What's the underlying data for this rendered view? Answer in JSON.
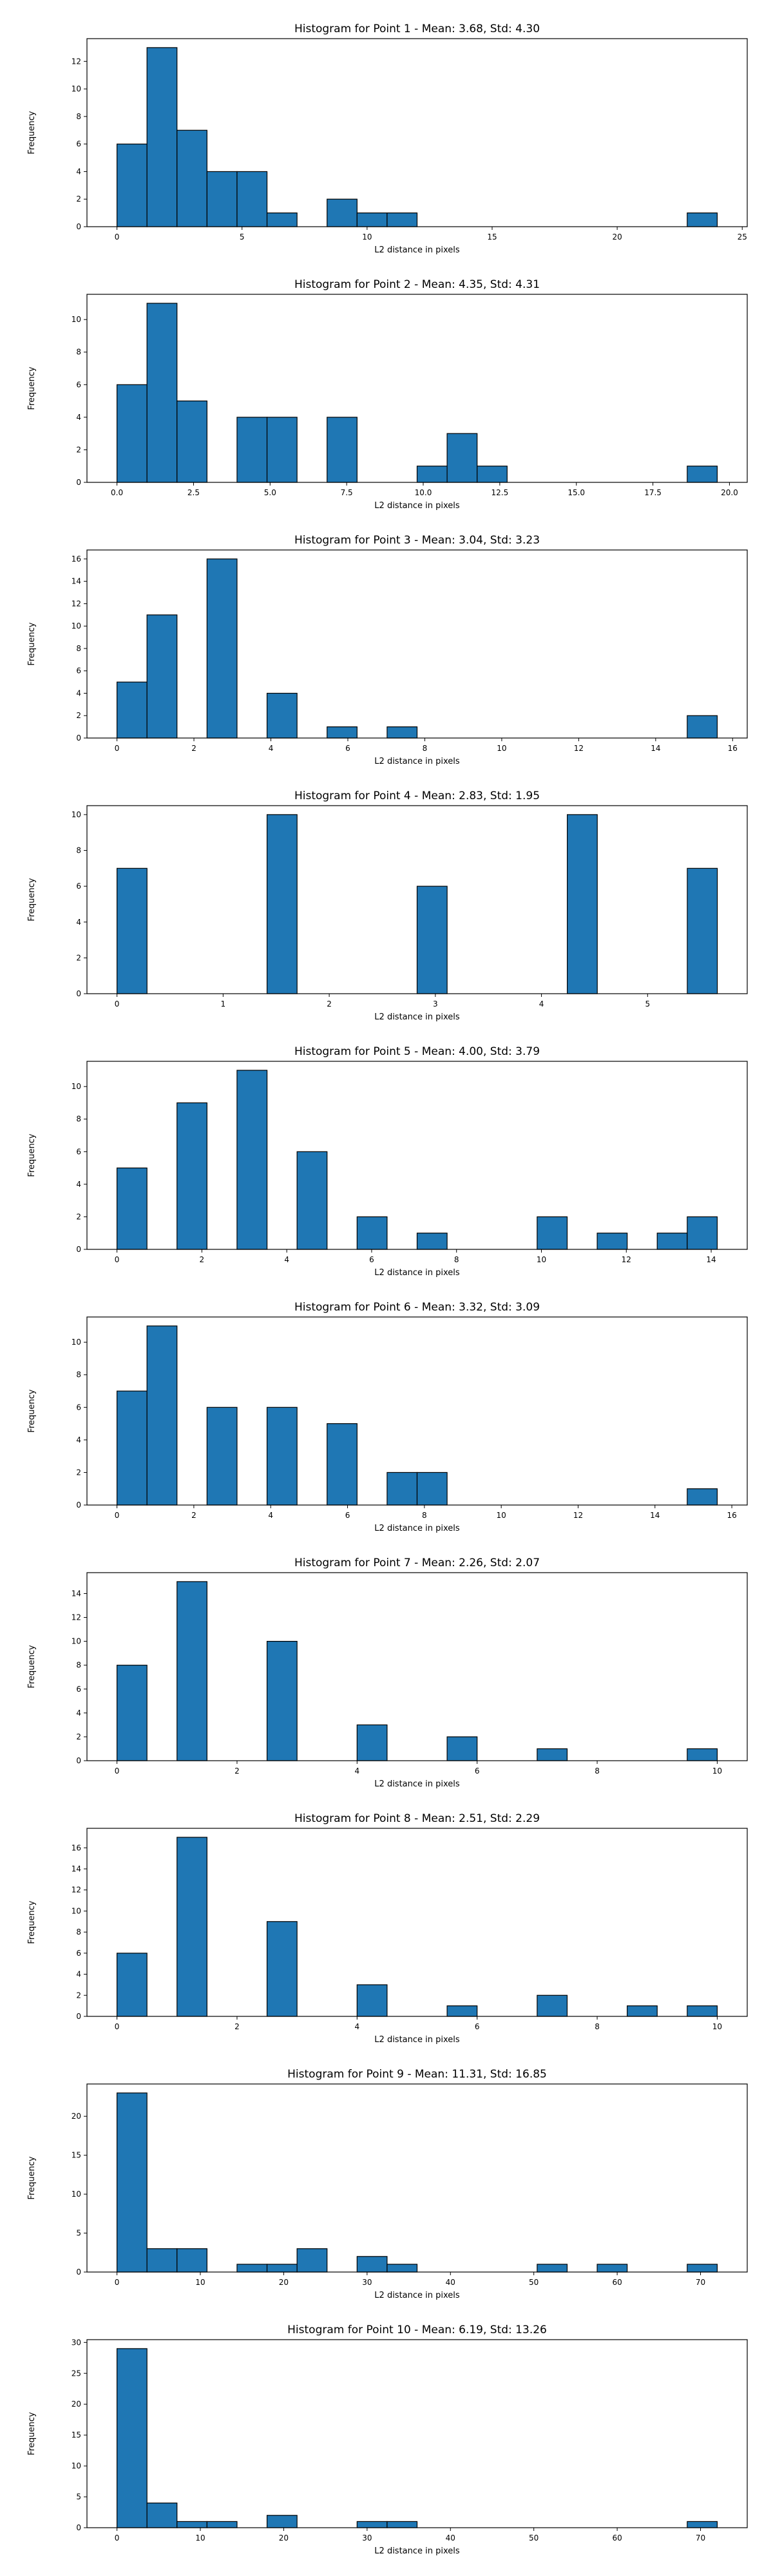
{
  "chart_data": [
    {
      "type": "bar",
      "title": "Histogram for Point 1 - Mean: 3.68, Std: 4.30",
      "xlabel": "L2 distance in pixels",
      "ylabel": "Frequency",
      "xlim": [
        -1.2,
        25.2
      ],
      "ylim": [
        0,
        13.65
      ],
      "xticks": [
        0,
        5,
        10,
        15,
        20,
        25
      ],
      "yticks": [
        0,
        2,
        4,
        6,
        8,
        10,
        12
      ],
      "bins": [
        {
          "x0": 0.0,
          "x1": 1.2,
          "count": 6
        },
        {
          "x0": 1.2,
          "x1": 2.4,
          "count": 13
        },
        {
          "x0": 2.4,
          "x1": 3.6,
          "count": 7
        },
        {
          "x0": 3.6,
          "x1": 4.8,
          "count": 4
        },
        {
          "x0": 4.8,
          "x1": 6.0,
          "count": 4
        },
        {
          "x0": 6.0,
          "x1": 7.2,
          "count": 1
        },
        {
          "x0": 8.4,
          "x1": 9.6,
          "count": 2
        },
        {
          "x0": 9.6,
          "x1": 10.8,
          "count": 1
        },
        {
          "x0": 10.8,
          "x1": 12.0,
          "count": 1
        },
        {
          "x0": 22.8,
          "x1": 24.0,
          "count": 1
        }
      ]
    },
    {
      "type": "bar",
      "title": "Histogram for Point 2 - Mean: 4.35, Std: 4.31",
      "xlabel": "L2 distance in pixels",
      "ylabel": "Frequency",
      "xlim": [
        -0.98,
        20.58
      ],
      "ylim": [
        0,
        11.55
      ],
      "xticks": [
        0.0,
        2.5,
        5.0,
        7.5,
        10.0,
        12.5,
        15.0,
        17.5,
        20.0
      ],
      "tick_labels": [
        "0.0",
        "2.5",
        "5.0",
        "7.5",
        "10.0",
        "12.5",
        "15.0",
        "17.5",
        "20.0"
      ],
      "yticks": [
        0,
        2,
        4,
        6,
        8,
        10
      ],
      "bins": [
        {
          "x0": 0.0,
          "x1": 0.98,
          "count": 6
        },
        {
          "x0": 0.98,
          "x1": 1.96,
          "count": 11
        },
        {
          "x0": 1.96,
          "x1": 2.94,
          "count": 5
        },
        {
          "x0": 3.92,
          "x1": 4.9,
          "count": 4
        },
        {
          "x0": 4.9,
          "x1": 5.88,
          "count": 4
        },
        {
          "x0": 6.86,
          "x1": 7.84,
          "count": 4
        },
        {
          "x0": 9.8,
          "x1": 10.78,
          "count": 1
        },
        {
          "x0": 10.78,
          "x1": 11.76,
          "count": 3
        },
        {
          "x0": 11.76,
          "x1": 12.74,
          "count": 1
        },
        {
          "x0": 18.62,
          "x1": 19.6,
          "count": 1
        }
      ]
    },
    {
      "type": "bar",
      "title": "Histogram for Point 3 - Mean: 3.04, Std: 3.23",
      "xlabel": "L2 distance in pixels",
      "ylabel": "Frequency",
      "xlim": [
        -0.78,
        16.38
      ],
      "ylim": [
        0,
        16.8
      ],
      "xticks": [
        0,
        2,
        4,
        6,
        8,
        10,
        12,
        14,
        16
      ],
      "yticks": [
        0,
        2,
        4,
        6,
        8,
        10,
        12,
        14,
        16
      ],
      "bins": [
        {
          "x0": 0.0,
          "x1": 0.78,
          "count": 5
        },
        {
          "x0": 0.78,
          "x1": 1.56,
          "count": 11
        },
        {
          "x0": 2.34,
          "x1": 3.12,
          "count": 16
        },
        {
          "x0": 3.9,
          "x1": 4.68,
          "count": 4
        },
        {
          "x0": 5.46,
          "x1": 6.24,
          "count": 1
        },
        {
          "x0": 7.02,
          "x1": 7.8,
          "count": 1
        },
        {
          "x0": 14.82,
          "x1": 15.6,
          "count": 2
        }
      ]
    },
    {
      "type": "bar",
      "title": "Histogram for Point 4 - Mean: 2.83, Std: 1.95",
      "xlabel": "L2 distance in pixels",
      "ylabel": "Frequency",
      "xlim": [
        -0.283,
        5.939
      ],
      "ylim": [
        0,
        10.5
      ],
      "xticks": [
        0,
        1,
        2,
        3,
        4,
        5
      ],
      "yticks": [
        0,
        2,
        4,
        6,
        8,
        10
      ],
      "bins": [
        {
          "x0": 0.0,
          "x1": 0.283,
          "count": 7
        },
        {
          "x0": 1.414,
          "x1": 1.697,
          "count": 10
        },
        {
          "x0": 2.828,
          "x1": 3.111,
          "count": 6
        },
        {
          "x0": 4.243,
          "x1": 4.526,
          "count": 10
        },
        {
          "x0": 5.374,
          "x1": 5.657,
          "count": 7
        }
      ]
    },
    {
      "type": "bar",
      "title": "Histogram for Point 5 - Mean: 4.00, Std: 3.79",
      "xlabel": "L2 distance in pixels",
      "ylabel": "Frequency",
      "xlim": [
        -0.707,
        14.849
      ],
      "ylim": [
        0,
        11.55
      ],
      "xticks": [
        0,
        2,
        4,
        6,
        8,
        10,
        12,
        14
      ],
      "yticks": [
        0,
        2,
        4,
        6,
        8,
        10
      ],
      "bins": [
        {
          "x0": 0.0,
          "x1": 0.707,
          "count": 5
        },
        {
          "x0": 1.414,
          "x1": 2.121,
          "count": 9
        },
        {
          "x0": 2.828,
          "x1": 3.536,
          "count": 11
        },
        {
          "x0": 4.243,
          "x1": 4.95,
          "count": 6
        },
        {
          "x0": 5.657,
          "x1": 6.364,
          "count": 2
        },
        {
          "x0": 7.071,
          "x1": 7.778,
          "count": 1
        },
        {
          "x0": 9.899,
          "x1": 10.607,
          "count": 2
        },
        {
          "x0": 11.314,
          "x1": 12.021,
          "count": 1
        },
        {
          "x0": 12.728,
          "x1": 13.435,
          "count": 1
        },
        {
          "x0": 13.435,
          "x1": 14.142,
          "count": 2
        }
      ]
    },
    {
      "type": "bar",
      "title": "Histogram for Point 6 - Mean: 3.32, Std: 3.09",
      "xlabel": "L2 distance in pixels",
      "ylabel": "Frequency",
      "xlim": [
        -0.781,
        16.401
      ],
      "ylim": [
        0,
        11.55
      ],
      "xticks": [
        0,
        2,
        4,
        6,
        8,
        10,
        12,
        14,
        16
      ],
      "yticks": [
        0,
        2,
        4,
        6,
        8,
        10
      ],
      "bins": [
        {
          "x0": 0.0,
          "x1": 0.781,
          "count": 7
        },
        {
          "x0": 0.781,
          "x1": 1.562,
          "count": 11
        },
        {
          "x0": 2.343,
          "x1": 3.124,
          "count": 6
        },
        {
          "x0": 3.905,
          "x1": 4.686,
          "count": 6
        },
        {
          "x0": 5.467,
          "x1": 6.248,
          "count": 5
        },
        {
          "x0": 7.029,
          "x1": 7.81,
          "count": 2
        },
        {
          "x0": 7.81,
          "x1": 8.591,
          "count": 2
        },
        {
          "x0": 14.839,
          "x1": 15.62,
          "count": 1
        }
      ]
    },
    {
      "type": "bar",
      "title": "Histogram for Point 7 - Mean: 2.26, Std: 2.07",
      "xlabel": "L2 distance in pixels",
      "ylabel": "Frequency",
      "xlim": [
        -0.5,
        10.5
      ],
      "ylim": [
        0,
        15.75
      ],
      "xticks": [
        0,
        2,
        4,
        6,
        8,
        10
      ],
      "yticks": [
        0,
        2,
        4,
        6,
        8,
        10,
        12,
        14
      ],
      "bins": [
        {
          "x0": 0.0,
          "x1": 0.5,
          "count": 8
        },
        {
          "x0": 1.0,
          "x1": 1.5,
          "count": 15
        },
        {
          "x0": 2.5,
          "x1": 3.0,
          "count": 10
        },
        {
          "x0": 4.0,
          "x1": 4.5,
          "count": 3
        },
        {
          "x0": 5.5,
          "x1": 6.0,
          "count": 2
        },
        {
          "x0": 7.0,
          "x1": 7.5,
          "count": 1
        },
        {
          "x0": 9.5,
          "x1": 10.0,
          "count": 1
        }
      ]
    },
    {
      "type": "bar",
      "title": "Histogram for Point 8 - Mean: 2.51, Std: 2.29",
      "xlabel": "L2 distance in pixels",
      "ylabel": "Frequency",
      "xlim": [
        -0.5,
        10.5
      ],
      "ylim": [
        0,
        17.85
      ],
      "xticks": [
        0,
        2,
        4,
        6,
        8,
        10
      ],
      "yticks": [
        0,
        2,
        4,
        6,
        8,
        10,
        12,
        14,
        16
      ],
      "bins": [
        {
          "x0": 0.0,
          "x1": 0.5,
          "count": 6
        },
        {
          "x0": 1.0,
          "x1": 1.5,
          "count": 17
        },
        {
          "x0": 2.5,
          "x1": 3.0,
          "count": 9
        },
        {
          "x0": 4.0,
          "x1": 4.5,
          "count": 3
        },
        {
          "x0": 5.5,
          "x1": 6.0,
          "count": 1
        },
        {
          "x0": 7.0,
          "x1": 7.5,
          "count": 2
        },
        {
          "x0": 8.5,
          "x1": 9.0,
          "count": 1
        },
        {
          "x0": 9.5,
          "x1": 10.0,
          "count": 1
        }
      ]
    },
    {
      "type": "bar",
      "title": "Histogram for Point 9 - Mean: 11.31, Std: 16.85",
      "xlabel": "L2 distance in pixels",
      "ylabel": "Frequency",
      "xlim": [
        -3.6,
        75.6
      ],
      "ylim": [
        0,
        24.15
      ],
      "xticks": [
        0,
        10,
        20,
        30,
        40,
        50,
        60,
        70
      ],
      "yticks": [
        0,
        5,
        10,
        15,
        20
      ],
      "bins": [
        {
          "x0": 0.0,
          "x1": 3.6,
          "count": 23
        },
        {
          "x0": 3.6,
          "x1": 7.2,
          "count": 3
        },
        {
          "x0": 7.2,
          "x1": 10.8,
          "count": 3
        },
        {
          "x0": 14.4,
          "x1": 18.0,
          "count": 1
        },
        {
          "x0": 18.0,
          "x1": 21.6,
          "count": 1
        },
        {
          "x0": 21.6,
          "x1": 25.2,
          "count": 3
        },
        {
          "x0": 28.8,
          "x1": 32.4,
          "count": 2
        },
        {
          "x0": 32.4,
          "x1": 36.0,
          "count": 1
        },
        {
          "x0": 50.4,
          "x1": 54.0,
          "count": 1
        },
        {
          "x0": 57.6,
          "x1": 61.2,
          "count": 1
        },
        {
          "x0": 68.4,
          "x1": 72.0,
          "count": 1
        }
      ]
    },
    {
      "type": "bar",
      "title": "Histogram for Point 10 - Mean: 6.19, Std: 13.26",
      "xlabel": "L2 distance in pixels",
      "ylabel": "Frequency",
      "xlim": [
        -3.6,
        75.6
      ],
      "ylim": [
        0,
        30.45
      ],
      "xticks": [
        0,
        10,
        20,
        30,
        40,
        50,
        60,
        70
      ],
      "yticks": [
        0,
        5,
        10,
        15,
        20,
        25,
        30
      ],
      "bins": [
        {
          "x0": 0.0,
          "x1": 3.6,
          "count": 29
        },
        {
          "x0": 3.6,
          "x1": 7.2,
          "count": 4
        },
        {
          "x0": 7.2,
          "x1": 10.8,
          "count": 1
        },
        {
          "x0": 10.8,
          "x1": 14.4,
          "count": 1
        },
        {
          "x0": 18.0,
          "x1": 21.6,
          "count": 2
        },
        {
          "x0": 28.8,
          "x1": 32.4,
          "count": 1
        },
        {
          "x0": 32.4,
          "x1": 36.0,
          "count": 1
        },
        {
          "x0": 68.4,
          "x1": 72.0,
          "count": 1
        }
      ]
    }
  ]
}
